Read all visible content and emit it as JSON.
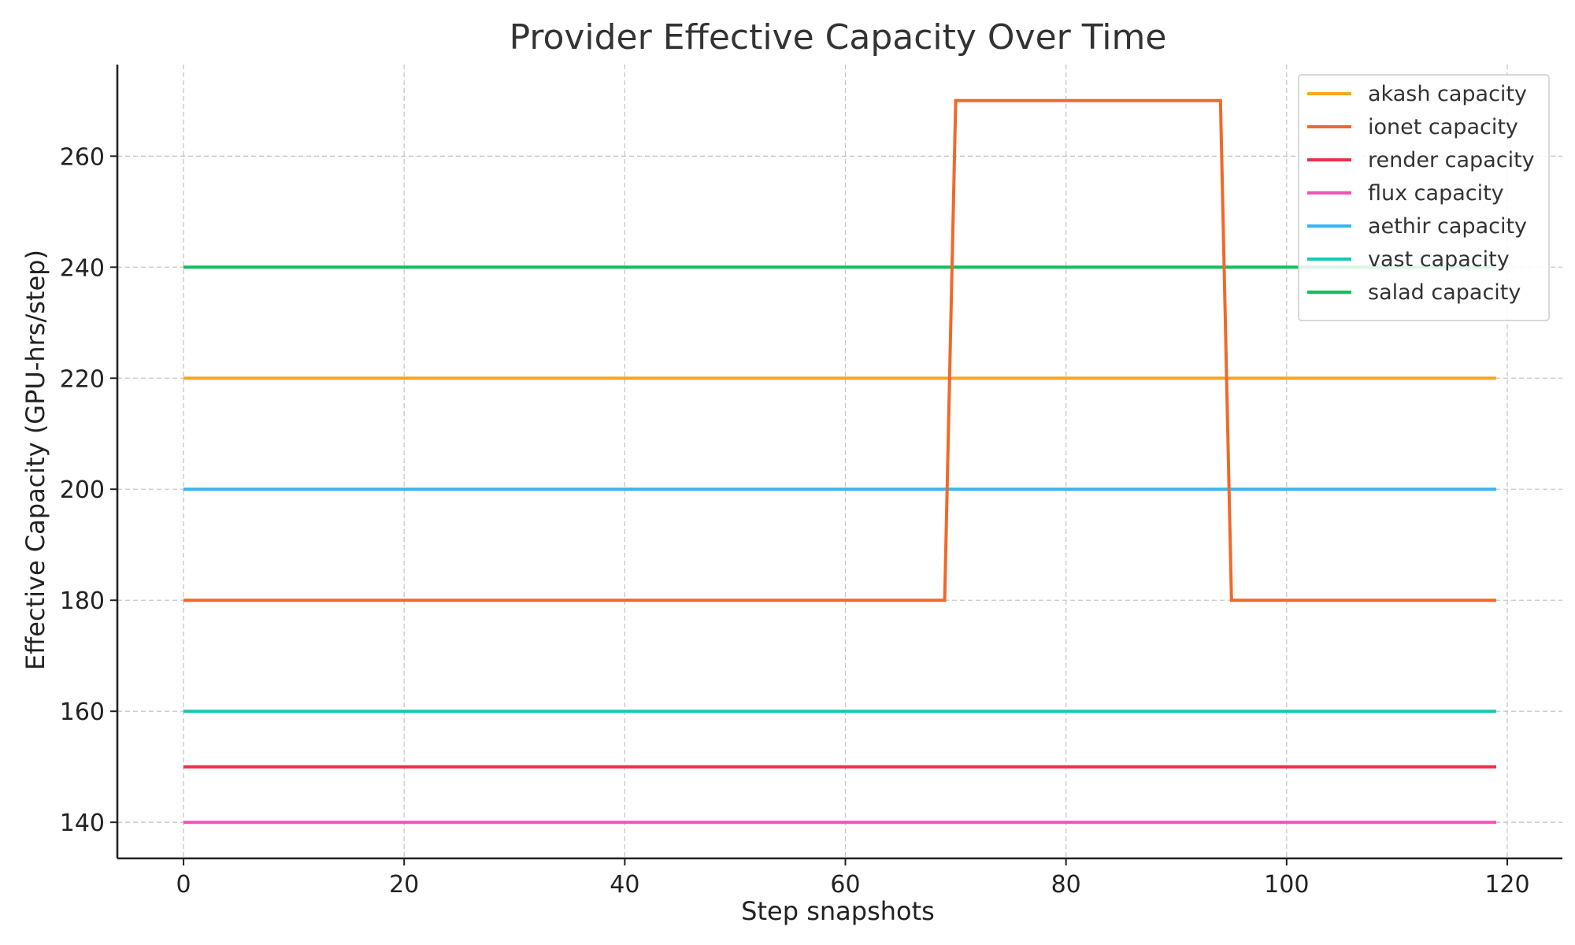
{
  "chart_data": {
    "type": "line",
    "title": "Provider Effective Capacity Over Time",
    "xlabel": "Step snapshots",
    "ylabel": "Effective Capacity (GPU-hrs/step)",
    "xlim": [
      -6,
      125
    ],
    "ylim": [
      133.5,
      276.5
    ],
    "xticks": [
      0,
      20,
      40,
      60,
      80,
      100,
      120
    ],
    "yticks": [
      140,
      160,
      180,
      200,
      220,
      240,
      260
    ],
    "xtick_labels": [
      "0",
      "20",
      "40",
      "60",
      "80",
      "100",
      "120"
    ],
    "ytick_labels": [
      "140",
      "160",
      "180",
      "200",
      "220",
      "240",
      "260"
    ],
    "grid": true,
    "legend_position": "top-right",
    "series": [
      {
        "name": "akash capacity",
        "color": "#f5a623",
        "points": [
          [
            0,
            220
          ],
          [
            119,
            220
          ]
        ]
      },
      {
        "name": "ionet capacity",
        "color": "#f0692a",
        "points": [
          [
            0,
            180
          ],
          [
            69,
            180
          ],
          [
            70,
            270
          ],
          [
            94,
            270
          ],
          [
            95,
            180
          ],
          [
            119,
            180
          ]
        ]
      },
      {
        "name": "render capacity",
        "color": "#e8304a",
        "points": [
          [
            0,
            150
          ],
          [
            119,
            150
          ]
        ]
      },
      {
        "name": "flux capacity",
        "color": "#ee55b5",
        "points": [
          [
            0,
            140
          ],
          [
            119,
            140
          ]
        ]
      },
      {
        "name": "aethir capacity",
        "color": "#35b6f0",
        "points": [
          [
            0,
            200
          ],
          [
            119,
            200
          ]
        ]
      },
      {
        "name": "vast capacity",
        "color": "#14c8b4",
        "points": [
          [
            0,
            160
          ],
          [
            119,
            160
          ]
        ]
      },
      {
        "name": "salad capacity",
        "color": "#12bf5c",
        "points": [
          [
            0,
            240
          ],
          [
            119,
            240
          ]
        ]
      }
    ]
  }
}
